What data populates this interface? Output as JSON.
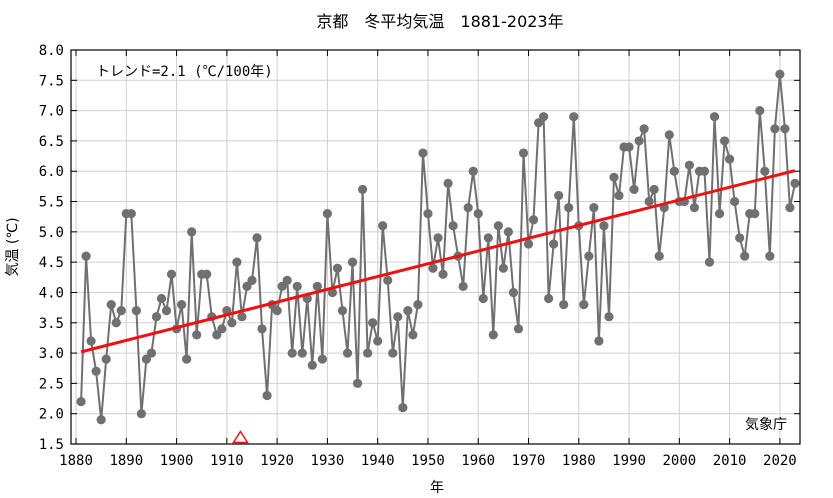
{
  "chart_data": {
    "type": "line",
    "title": "京都　冬平均気温　1881-2023年",
    "xlabel": "年",
    "ylabel": "気温 (℃)",
    "trend_label": "トレンド=2.1 (℃/100年)",
    "source_label": "気象庁",
    "xlim": [
      1879,
      2024
    ],
    "ylim": [
      1.5,
      8.0
    ],
    "x_ticks": [
      1880,
      1890,
      1900,
      1910,
      1920,
      1930,
      1940,
      1950,
      1960,
      1970,
      1980,
      1990,
      2000,
      2010,
      2020
    ],
    "y_ticks": [
      "1.5",
      "2.0",
      "2.5",
      "3.0",
      "3.5",
      "4.0",
      "4.5",
      "5.0",
      "5.5",
      "6.0",
      "6.5",
      "7.0",
      "7.5",
      "8.0"
    ],
    "grid": true,
    "series": [
      {
        "color": "#707070",
        "x": [
          1881,
          1882,
          1883,
          1884,
          1885,
          1886,
          1887,
          1888,
          1889,
          1890,
          1891,
          1892,
          1893,
          1894,
          1895,
          1896,
          1897,
          1898,
          1899,
          1900,
          1901,
          1902,
          1903,
          1904,
          1905,
          1906,
          1907,
          1908,
          1909,
          1910,
          1911,
          1912,
          1913,
          1914,
          1915,
          1916,
          1917,
          1918,
          1919,
          1920,
          1921,
          1922,
          1923,
          1924,
          1925,
          1926,
          1927,
          1928,
          1929,
          1930,
          1931,
          1932,
          1933,
          1934,
          1935,
          1936,
          1937,
          1938,
          1939,
          1940,
          1941,
          1942,
          1943,
          1944,
          1945,
          1946,
          1947,
          1948,
          1949,
          1950,
          1951,
          1952,
          1953,
          1954,
          1955,
          1956,
          1957,
          1958,
          1959,
          1960,
          1961,
          1962,
          1963,
          1964,
          1965,
          1966,
          1967,
          1968,
          1969,
          1970,
          1971,
          1972,
          1973,
          1974,
          1975,
          1976,
          1977,
          1978,
          1979,
          1980,
          1981,
          1982,
          1983,
          1984,
          1985,
          1986,
          1987,
          1988,
          1989,
          1990,
          1991,
          1992,
          1993,
          1994,
          1995,
          1996,
          1997,
          1998,
          1999,
          2000,
          2001,
          2002,
          2003,
          2004,
          2005,
          2006,
          2007,
          2008,
          2009,
          2010,
          2011,
          2012,
          2013,
          2014,
          2015,
          2016,
          2017,
          2018,
          2019,
          2020,
          2021,
          2022,
          2023
        ],
        "y": [
          2.2,
          4.6,
          3.2,
          2.7,
          1.9,
          2.9,
          3.8,
          3.5,
          3.7,
          5.3,
          5.3,
          3.7,
          2.0,
          2.9,
          3.0,
          3.6,
          3.9,
          3.7,
          4.3,
          3.4,
          3.8,
          2.9,
          5.0,
          3.3,
          4.3,
          4.3,
          3.6,
          3.3,
          3.4,
          3.7,
          3.5,
          4.5,
          3.6,
          4.1,
          4.2,
          4.9,
          3.4,
          2.3,
          3.8,
          3.7,
          4.1,
          4.2,
          3.0,
          4.1,
          3.0,
          3.9,
          2.8,
          4.1,
          2.9,
          5.3,
          4.0,
          4.4,
          3.7,
          3.0,
          4.5,
          2.5,
          5.7,
          3.0,
          3.5,
          3.2,
          5.1,
          4.2,
          3.0,
          3.6,
          2.1,
          3.7,
          3.3,
          3.8,
          6.3,
          5.3,
          4.4,
          4.9,
          4.3,
          5.8,
          5.1,
          4.6,
          4.1,
          5.4,
          6.0,
          5.3,
          3.9,
          4.9,
          3.3,
          5.1,
          4.4,
          5.0,
          4.0,
          3.4,
          6.3,
          4.8,
          5.2,
          6.8,
          6.9,
          3.9,
          4.8,
          5.6,
          3.8,
          5.4,
          6.9,
          5.1,
          3.8,
          4.6,
          5.4,
          3.2,
          5.1,
          3.6,
          5.9,
          5.6,
          6.4,
          6.4,
          5.7,
          6.5,
          6.7,
          5.5,
          5.7,
          4.6,
          5.4,
          6.6,
          6.0,
          5.5,
          5.5,
          6.1,
          5.4,
          6.0,
          6.0,
          4.5,
          6.9,
          5.3,
          6.5,
          6.2,
          5.5,
          4.9,
          4.6,
          5.3,
          5.3,
          7.0,
          6.0,
          4.6,
          6.7,
          7.6,
          6.7,
          5.4,
          5.8
        ]
      },
      {
        "color": "#ee1111",
        "x": [
          1881,
          2023
        ],
        "y": [
          3.02,
          6.01
        ]
      }
    ],
    "markers": [
      {
        "type": "triangle",
        "x": 1912.7,
        "color": "#ee1111"
      }
    ]
  }
}
